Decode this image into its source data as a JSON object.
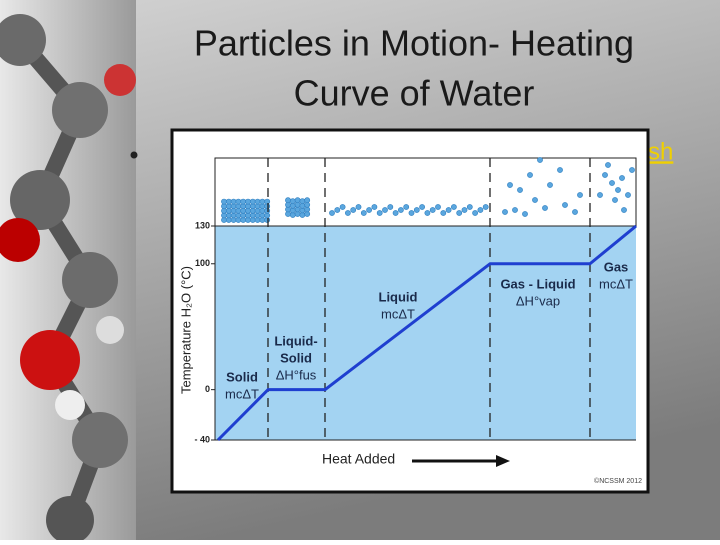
{
  "title_lines": [
    "Particles in Motion- Heating",
    "Curve of Water"
  ],
  "bullet_link": "sh",
  "chart_data": {
    "type": "line",
    "y_label": "Temperature H₂O (°C)",
    "x_label": "Heat Added",
    "x": [
      0,
      50,
      107,
      272,
      372,
      418
    ],
    "xlim": [
      0,
      418
    ],
    "values": [
      -40,
      0,
      0,
      100,
      100,
      130
    ],
    "color": "#1f3fd0",
    "ylim": [
      -40,
      130
    ],
    "yticks": [
      {
        "value": -40,
        "label": "- 40"
      },
      0,
      100,
      130
    ],
    "annotations": [
      [
        "Solid",
        "mcΔT"
      ],
      [
        "Liquid-",
        "Solid",
        "ΔH°fus"
      ],
      [
        "Liquid",
        "mcΔT"
      ],
      [
        "Gas - Liquid",
        "ΔH°vap"
      ],
      [
        "Gas",
        "mcΔT"
      ]
    ],
    "credit": "©NCSSM 2012"
  }
}
